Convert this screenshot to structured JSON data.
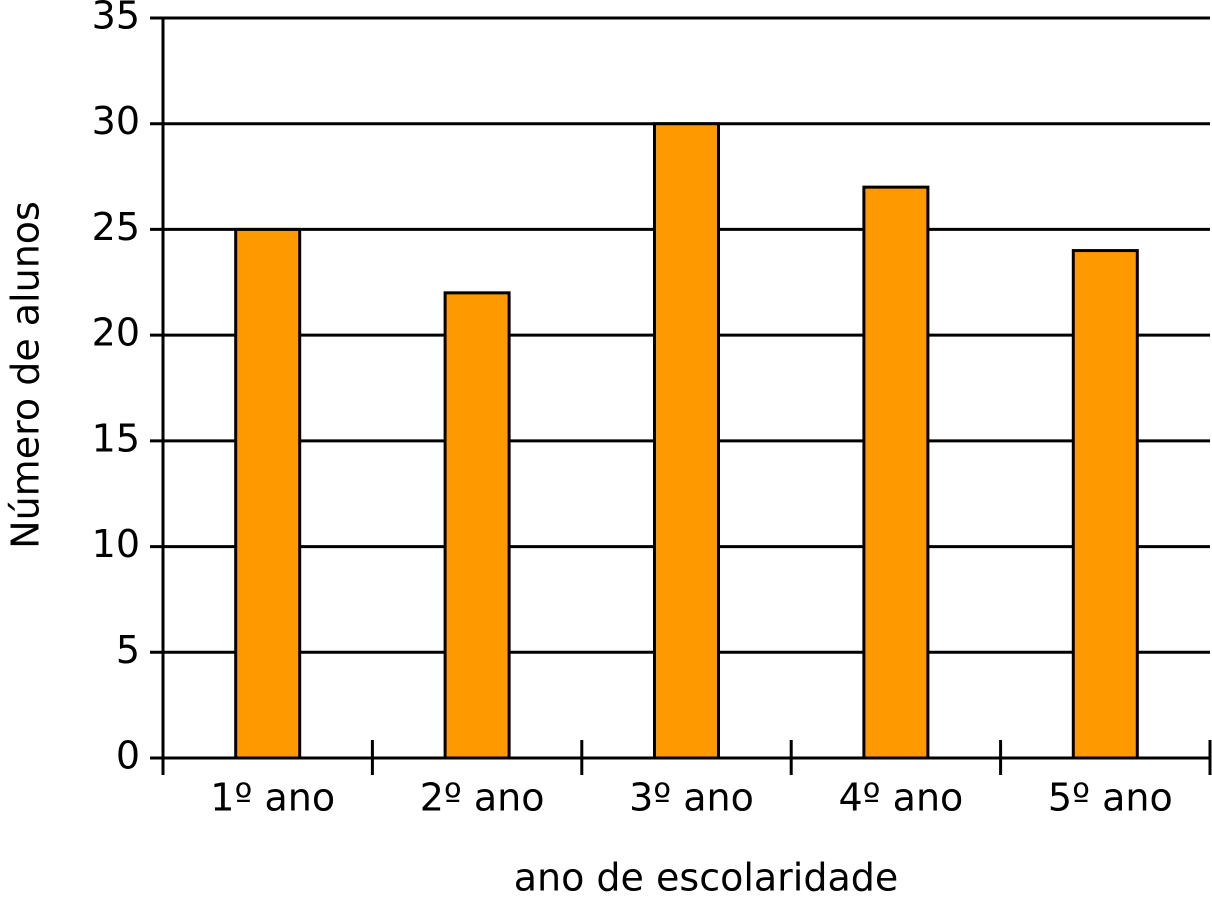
{
  "chart_data": {
    "type": "bar",
    "x_label": "ano de escolaridade",
    "y_label": "Número de alunos",
    "categories": [
      "1º ano",
      "2º ano",
      "3º ano",
      "4º ano",
      "5º ano"
    ],
    "values": [
      25,
      22,
      30,
      27,
      24
    ],
    "color": "#ff9900",
    "ylim": [
      0,
      35
    ],
    "yticks": [
      0,
      5,
      10,
      15,
      20,
      25,
      30,
      35
    ],
    "grid": true
  }
}
